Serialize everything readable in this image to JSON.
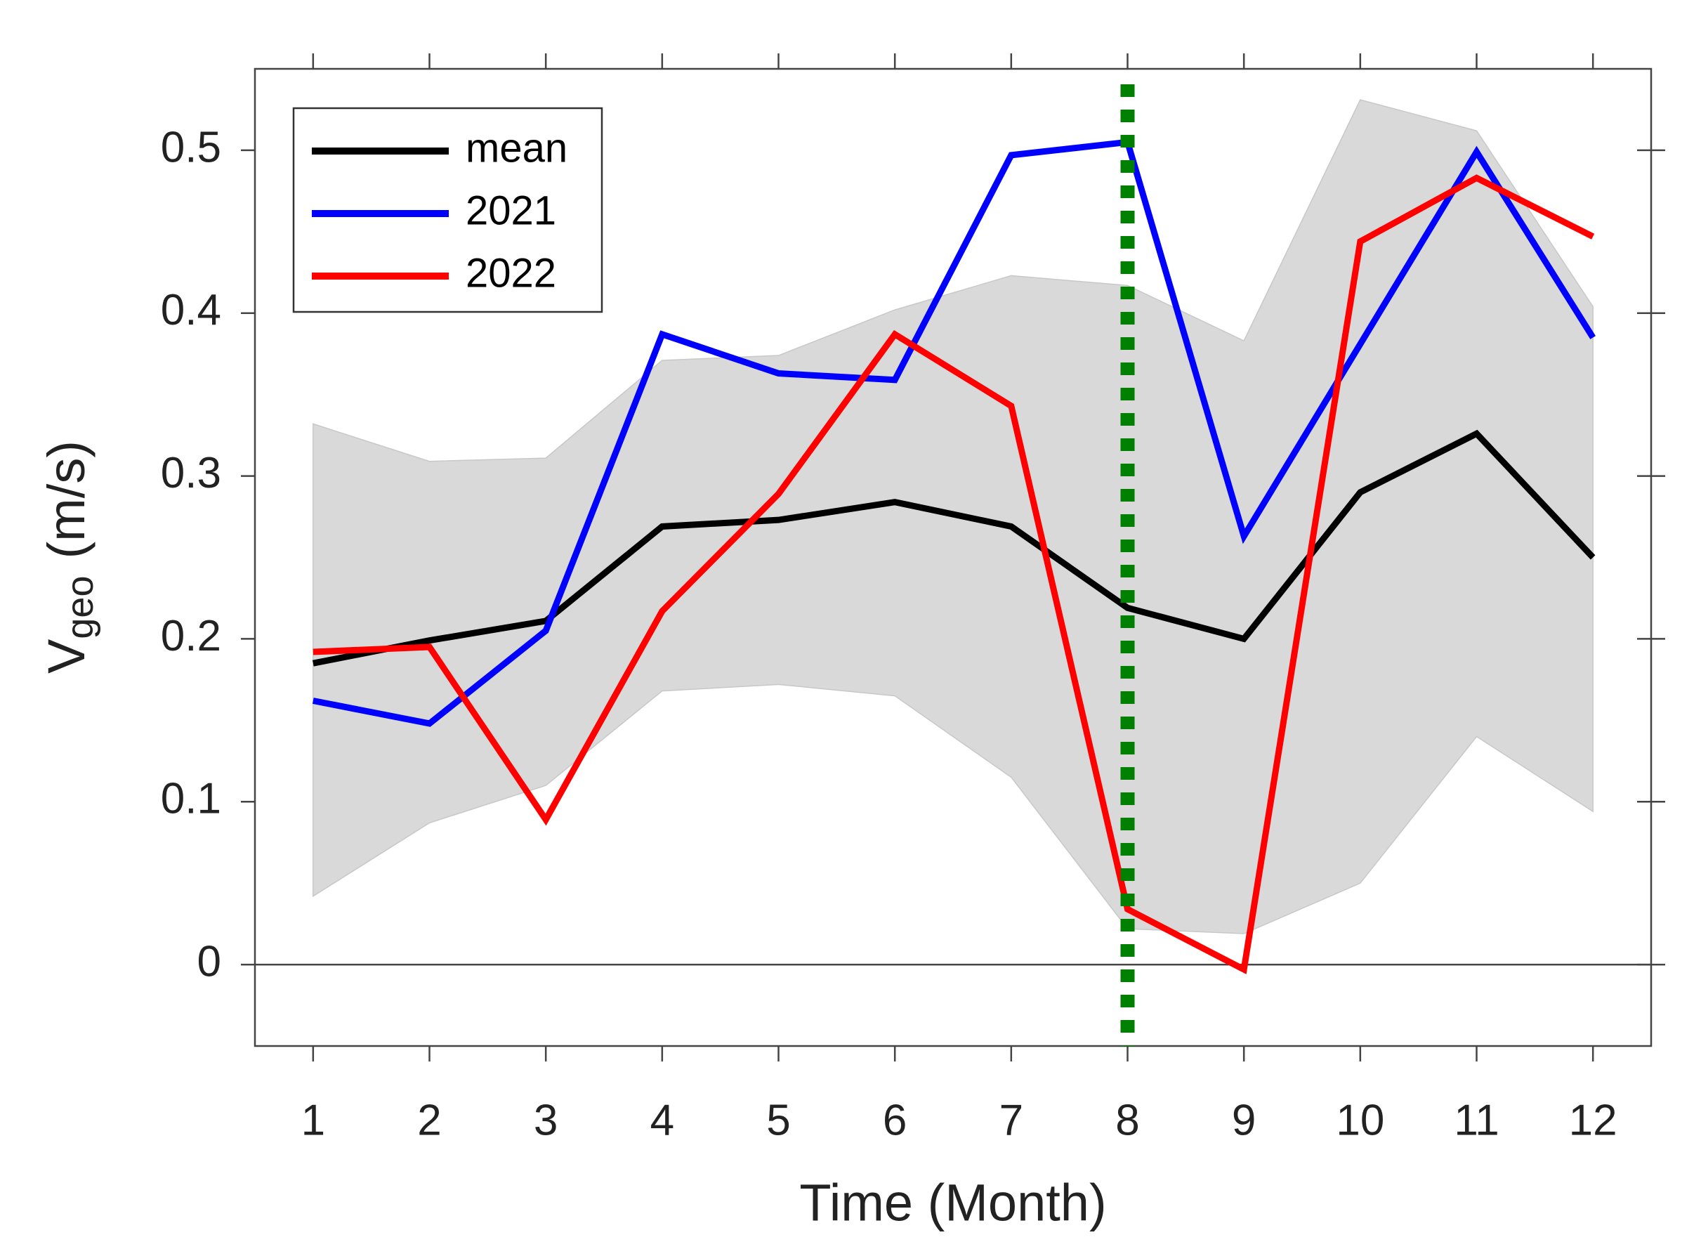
{
  "chart_data": {
    "type": "line",
    "xlabel": "Time (Month)",
    "ylabel": "V",
    "ylabel_subscript": "geo",
    "ylabel_units": "(m/s)",
    "x": [
      1,
      2,
      3,
      4,
      5,
      6,
      7,
      8,
      9,
      10,
      11,
      12
    ],
    "series": [
      {
        "name": "mean",
        "color": "#000000",
        "values": [
          0.185,
          0.199,
          0.211,
          0.269,
          0.273,
          0.284,
          0.269,
          0.219,
          0.2,
          0.29,
          0.326,
          0.25
        ]
      },
      {
        "name": "2021",
        "color": "#0000ff",
        "values": [
          0.162,
          0.148,
          0.205,
          0.387,
          0.363,
          0.359,
          0.497,
          0.505,
          0.263,
          0.381,
          0.499,
          0.385
        ]
      },
      {
        "name": "2022",
        "color": "#ff0000",
        "values": [
          0.192,
          0.195,
          0.089,
          0.217,
          0.289,
          0.387,
          0.343,
          0.034,
          -0.003,
          0.444,
          0.483,
          0.447
        ]
      }
    ],
    "band": {
      "color": "#d9d9d9",
      "upper": [
        0.332,
        0.309,
        0.311,
        0.371,
        0.374,
        0.402,
        0.423,
        0.417,
        0.383,
        0.531,
        0.512,
        0.404
      ],
      "lower": [
        0.042,
        0.087,
        0.11,
        0.168,
        0.172,
        0.165,
        0.115,
        0.022,
        0.019,
        0.05,
        0.14,
        0.094
      ]
    },
    "vline": {
      "x": 8,
      "color": "#008000"
    },
    "hline": 0,
    "xlim": [
      0.5,
      12.5
    ],
    "xticks": [
      1,
      2,
      3,
      4,
      5,
      6,
      7,
      8,
      9,
      10,
      11,
      12
    ],
    "ylim": [
      -0.05,
      0.55
    ],
    "yticks": [
      0,
      0.1,
      0.2,
      0.3,
      0.4,
      0.5
    ],
    "legend": "upper left"
  }
}
